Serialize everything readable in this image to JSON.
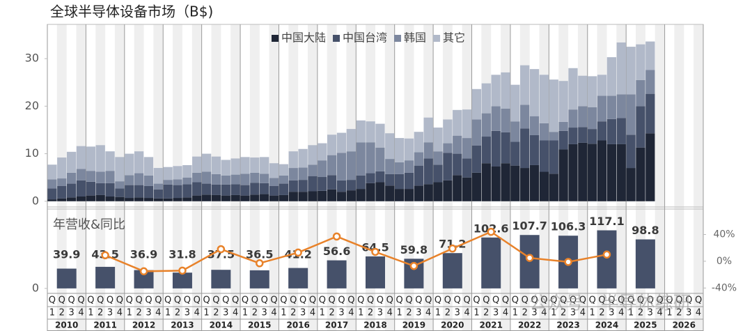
{
  "chart_data": [
    {
      "type": "stacked_bar",
      "title": "全球半导体设备市场（B$)",
      "legend": "top-right",
      "stripes": true,
      "years": [
        "2010",
        "2011",
        "2012",
        "2013",
        "2014",
        "2015",
        "2016",
        "2017",
        "2018",
        "2019",
        "2020",
        "2021",
        "2022",
        "2023",
        "2024",
        "2025",
        "2026"
      ],
      "quarter_prefix": "Q",
      "quarter_labels": [
        1,
        2,
        3,
        4
      ],
      "ylim": [
        -1.2,
        37.2
      ],
      "yticks": [
        0,
        10,
        20,
        30
      ],
      "series": [
        {
          "name": "中国大陆",
          "color": "#1f2636",
          "values": [
            0.4,
            0.6,
            0.8,
            1.0,
            1.2,
            1.3,
            1.0,
            0.9,
            0.7,
            0.8,
            0.7,
            0.6,
            0.6,
            0.7,
            0.8,
            1.2,
            1.4,
            1.3,
            1.2,
            1.3,
            1.2,
            1.4,
            1.5,
            1.2,
            1.3,
            2.0,
            2.0,
            2.1,
            2.2,
            2.5,
            2.0,
            2.3,
            2.6,
            3.8,
            4.0,
            3.3,
            2.6,
            2.6,
            3.3,
            3.6,
            4.0,
            4.4,
            5.5,
            5.0,
            6.0,
            8.0,
            7.3,
            8.0,
            7.5,
            7.0,
            7.6,
            6.2,
            5.8,
            10.9,
            12.0,
            12.3,
            12.1,
            12.8,
            12.0,
            12.0,
            7.0,
            11.3,
            14.3,
            null,
            null,
            null,
            null,
            null
          ]
        },
        {
          "name": "中国台湾",
          "color": "#46516a",
          "values": [
            2.3,
            2.6,
            2.9,
            3.4,
            2.9,
            2.5,
            2.8,
            1.8,
            2.7,
            2.6,
            2.5,
            1.9,
            2.9,
            2.7,
            2.8,
            2.8,
            2.3,
            2.2,
            2.3,
            2.3,
            2.2,
            2.5,
            2.3,
            2.0,
            2.4,
            2.4,
            2.5,
            3.2,
            2.9,
            3.0,
            2.4,
            2.2,
            2.8,
            2.1,
            2.3,
            2.4,
            3.1,
            3.4,
            4.2,
            5.4,
            3.7,
            5.8,
            4.5,
            4.0,
            5.7,
            5.6,
            7.5,
            6.5,
            5.0,
            8.3,
            6.3,
            6.6,
            7.0,
            3.9,
            3.5,
            3.3,
            3.1,
            4.0,
            5.3,
            5.5,
            7.0,
            8.7,
            8.3,
            null,
            null,
            null,
            null,
            null
          ]
        },
        {
          "name": "韩国",
          "color": "#7c879e",
          "values": [
            1.9,
            1.6,
            2.3,
            2.4,
            2.3,
            2.4,
            2.6,
            1.5,
            2.1,
            2.5,
            2.2,
            1.2,
            1.0,
            1.2,
            1.4,
            2.0,
            2.5,
            2.2,
            1.9,
            2.0,
            2.4,
            2.1,
            2.0,
            1.7,
            1.7,
            2.6,
            2.6,
            2.4,
            3.5,
            4.2,
            5.8,
            6.0,
            7.0,
            6.5,
            5.0,
            3.2,
            2.5,
            2.6,
            2.8,
            3.4,
            2.8,
            2.0,
            3.8,
            4.3,
            5.5,
            4.9,
            5.2,
            5.0,
            4.3,
            5.0,
            4.0,
            3.6,
            1.8,
            1.9,
            3.8,
            4.4,
            4.6,
            5.4,
            4.9,
            5.0,
            8.5,
            5.5,
            5.0,
            null,
            null,
            null,
            null,
            null
          ]
        },
        {
          "name": "其它",
          "color": "#b1b9c9",
          "values": [
            3.1,
            4.4,
            4.4,
            4.8,
            5.1,
            5.6,
            4.1,
            5.1,
            4.5,
            4.6,
            3.9,
            3.3,
            2.7,
            2.8,
            2.6,
            3.4,
            3.8,
            3.7,
            3.3,
            3.4,
            3.5,
            3.2,
            3.5,
            3.1,
            2.4,
            3.5,
            3.9,
            4.1,
            3.6,
            4.3,
            4.2,
            4.7,
            4.6,
            4.4,
            5.0,
            5.4,
            5.1,
            4.6,
            4.3,
            5.2,
            5.0,
            5.0,
            5.4,
            6.0,
            6.4,
            6.3,
            6.6,
            7.6,
            7.7,
            8.3,
            9.9,
            10.2,
            11.0,
            8.6,
            8.7,
            6.4,
            6.5,
            4.4,
            8.1,
            10.9,
            10.0,
            7.5,
            6.0,
            null,
            null,
            null,
            null,
            null
          ]
        }
      ]
    },
    {
      "type": "bar_line",
      "subtitle": "年营收&同比",
      "ylim": [
        -10,
        160
      ],
      "yticks": [
        0
      ],
      "y2lim": [
        -48,
        78
      ],
      "y2ticks": [
        {
          "value": 40,
          "label": "40%"
        },
        {
          "value": 0,
          "label": "0%"
        },
        {
          "value": -40,
          "label": "-40%"
        }
      ],
      "series": [
        {
          "color": "#46516a",
          "values": [
            39.9,
            43.5,
            36.9,
            31.8,
            37.5,
            36.5,
            41.2,
            56.6,
            64.5,
            59.8,
            71.2,
            102.6,
            107.7,
            106.3,
            117.1,
            98.8,
            null
          ]
        },
        {
          "color": "#e8822a",
          "axis": "y2",
          "values": [
            null,
            9,
            -15,
            -14,
            18,
            -3,
            13,
            37,
            14,
            -7,
            19,
            44,
            5,
            -1,
            10,
            null,
            null
          ]
        }
      ]
    }
  ],
  "watermark": "公众号 · 半导体综研"
}
